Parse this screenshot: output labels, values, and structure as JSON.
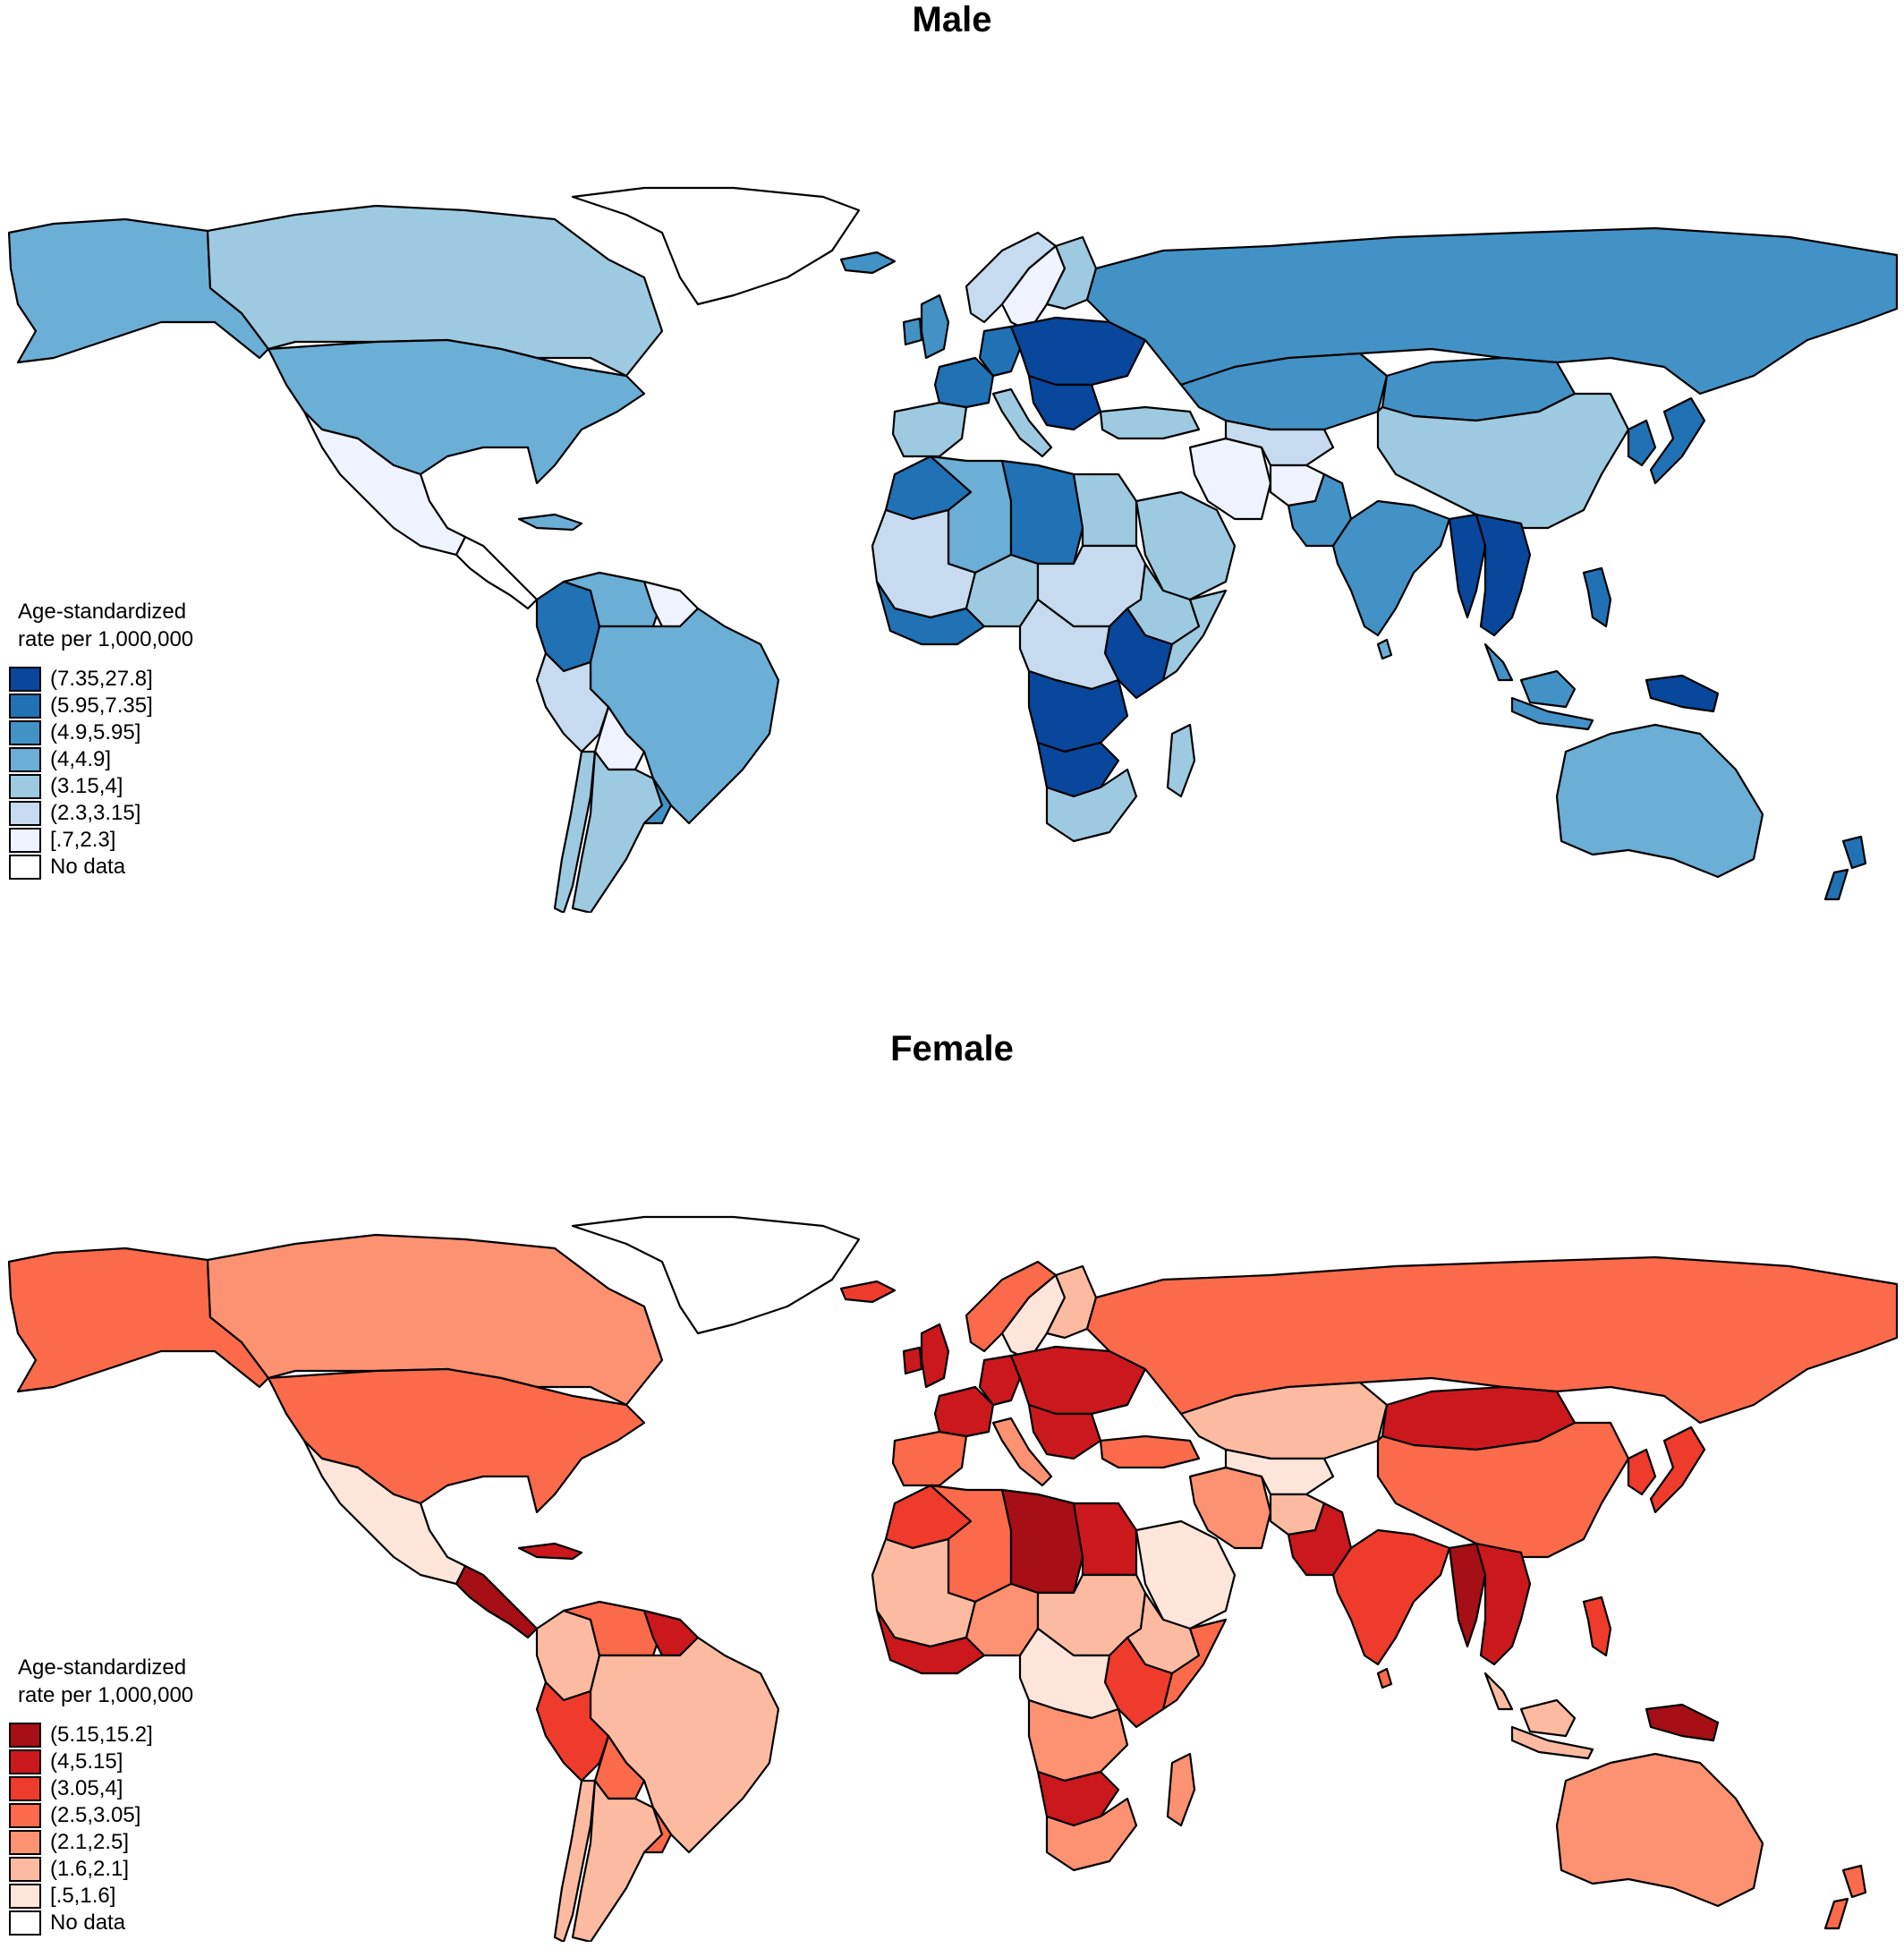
{
  "panels": [
    {
      "id": "male",
      "title": "Male",
      "legend": {
        "title_line1": "Age-standardized",
        "title_line2": "rate per 1,000,000",
        "items": [
          {
            "label": "(7.35,27.8]",
            "color": "#08479b"
          },
          {
            "label": "(5.95,7.35]",
            "color": "#2171b5"
          },
          {
            "label": "(4.9,5.95]",
            "color": "#4292c6"
          },
          {
            "label": "(4,4.9]",
            "color": "#6baed6"
          },
          {
            "label": "(3.15,4]",
            "color": "#9ecae1"
          },
          {
            "label": "(2.3,3.15]",
            "color": "#c6dbef"
          },
          {
            "label": "[.7,2.3]",
            "color": "#eff3ff"
          },
          {
            "label": "No data",
            "color": "#ffffff"
          }
        ]
      },
      "regions": {
        "alaska": 3,
        "canada": 4,
        "usa": 3,
        "greenland": 7,
        "mexico": 6,
        "central_america": 7,
        "caribbean": 3,
        "colombia": 1,
        "venezuela": 3,
        "guianas": 6,
        "brazil": 3,
        "peru": 5,
        "bolivia": 6,
        "chile": 4,
        "argentina": 4,
        "uruguay": 2,
        "iceland": 2,
        "uk": 2,
        "ireland": 2,
        "norway": 5,
        "sweden": 6,
        "finland": 4,
        "iberia": 4,
        "france": 1,
        "germany": 1,
        "italy": 4,
        "eastern_europe": 0,
        "balkans": 0,
        "russia": 2,
        "kazakhstan": 2,
        "mongolia": 2,
        "china": 4,
        "korea_japan": 1,
        "turkey": 4,
        "iran": 6,
        "central_asia": 5,
        "afghanistan": 6,
        "pakistan": 2,
        "india": 2,
        "myanmar": 0,
        "mainland_se_asia": 0,
        "malaysia_indonesia": 2,
        "philippines": 1,
        "png": 0,
        "australia": 3,
        "new_zealand": 1,
        "maghreb": 1,
        "algeria": 3,
        "libya": 1,
        "egypt": 4,
        "arabia": 4,
        "sahel_west": 5,
        "west_coast": 1,
        "nigeria": 4,
        "chad_sudan": 5,
        "ethiopia": 4,
        "east_africa": 0,
        "somalia": 4,
        "congo": 5,
        "angola_zambia": 0,
        "southern_africa": 0,
        "south_africa": 4,
        "madagascar": 4,
        "sri_lanka": 3
      }
    },
    {
      "id": "female",
      "title": "Female",
      "legend": {
        "title_line1": "Age-standardized",
        "title_line2": "rate per 1,000,000",
        "items": [
          {
            "label": "(5.15,15.2]",
            "color": "#a50f15"
          },
          {
            "label": "(4,5.15]",
            "color": "#cb181d"
          },
          {
            "label": "(3.05,4]",
            "color": "#ef3b2c"
          },
          {
            "label": "(2.5,3.05]",
            "color": "#fb6a4a"
          },
          {
            "label": "(2.1,2.5]",
            "color": "#fc9272"
          },
          {
            "label": "(1.6,2.1]",
            "color": "#fcbba1"
          },
          {
            "label": "[.5,1.6]",
            "color": "#fee5d9"
          },
          {
            "label": "No data",
            "color": "#ffffff"
          }
        ]
      },
      "regions": {
        "alaska": 3,
        "canada": 4,
        "usa": 3,
        "greenland": 7,
        "mexico": 6,
        "central_america": 0,
        "caribbean": 1,
        "colombia": 5,
        "venezuela": 3,
        "guianas": 1,
        "brazil": 5,
        "peru": 2,
        "bolivia": 3,
        "chile": 5,
        "argentina": 5,
        "uruguay": 3,
        "iceland": 2,
        "uk": 1,
        "ireland": 1,
        "norway": 3,
        "sweden": 6,
        "finland": 5,
        "iberia": 3,
        "france": 1,
        "germany": 1,
        "italy": 4,
        "eastern_europe": 1,
        "balkans": 1,
        "russia": 3,
        "kazakhstan": 5,
        "mongolia": 1,
        "china": 3,
        "korea_japan": 2,
        "turkey": 3,
        "iran": 4,
        "central_asia": 6,
        "afghanistan": 5,
        "pakistan": 1,
        "india": 2,
        "myanmar": 0,
        "mainland_se_asia": 1,
        "malaysia_indonesia": 5,
        "philippines": 2,
        "png": 0,
        "australia": 4,
        "new_zealand": 3,
        "maghreb": 2,
        "algeria": 3,
        "libya": 0,
        "egypt": 1,
        "arabia": 6,
        "sahel_west": 5,
        "west_coast": 1,
        "nigeria": 4,
        "chad_sudan": 5,
        "ethiopia": 5,
        "east_africa": 2,
        "somalia": 3,
        "congo": 6,
        "angola_zambia": 4,
        "southern_africa": 1,
        "south_africa": 4,
        "madagascar": 4,
        "sri_lanka": 3
      }
    }
  ]
}
